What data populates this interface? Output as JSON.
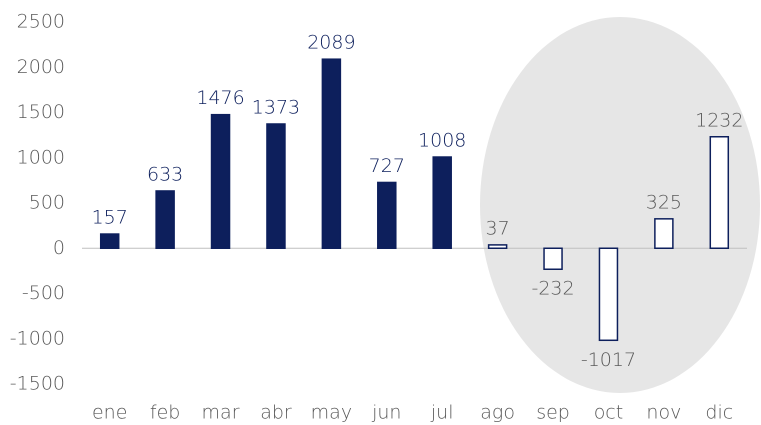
{
  "chart_data": {
    "type": "bar",
    "categories": [
      "ene",
      "feb",
      "mar",
      "abr",
      "may",
      "jun",
      "jul",
      "ago",
      "sep",
      "oct",
      "nov",
      "dic"
    ],
    "values": [
      157,
      633,
      1476,
      1373,
      2089,
      727,
      1008,
      37,
      -232,
      -1017,
      325,
      1232
    ],
    "colors": [
      "#0d1f5c",
      "#0d1f5c",
      "#0d1f5c",
      "#0d1f5c",
      "#0d1f5c",
      "#0d1f5c",
      "#0d1f5c",
      "#ffffff",
      "#ffffff",
      "#ffffff",
      "#ffffff",
      "#ffffff"
    ],
    "edgecolor": "#0d1f5c",
    "label_colors": [
      "#0d1f5c",
      "#0d1f5c",
      "#0d1f5c",
      "#0d1f5c",
      "#0d1f5c",
      "#0d1f5c",
      "#0d1f5c",
      "#595959",
      "#595959",
      "#595959",
      "#595959",
      "#595959"
    ],
    "ylim": [
      -1500,
      2500
    ],
    "yticks": [
      -1500,
      -1000,
      -500,
      0,
      500,
      1000,
      1500,
      2000,
      2500
    ],
    "grid": false
  }
}
